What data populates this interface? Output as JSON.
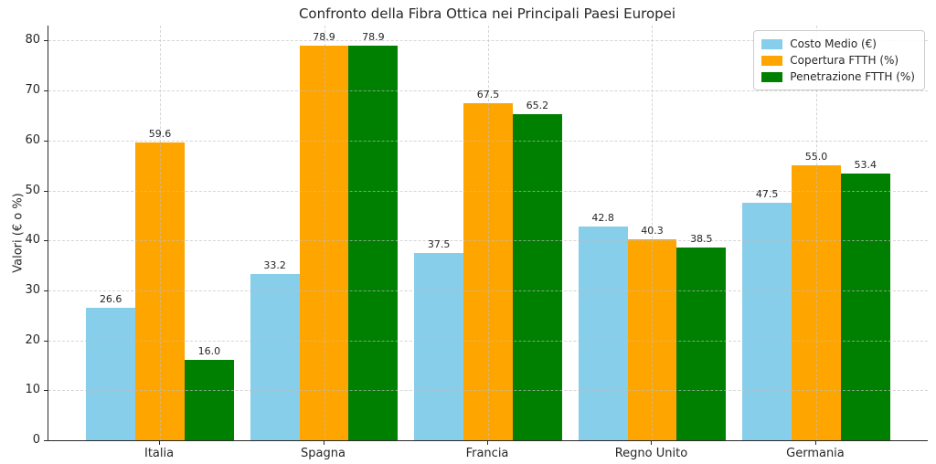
{
  "title": "Confronto della Fibra Ottica nei Principali Paesi Europei",
  "chart_data": {
    "type": "bar",
    "title": "Confronto della Fibra Ottica nei Principali Paesi Europei",
    "categories": [
      "Italia",
      "Spagna",
      "Francia",
      "Regno Unito",
      "Germania"
    ],
    "series": [
      {
        "name": "Costo Medio (€)",
        "color": "#87CEEB",
        "values": [
          26.6,
          33.2,
          37.5,
          42.8,
          47.5
        ]
      },
      {
        "name": "Copertura FTTH (%)",
        "color": "#FFA500",
        "values": [
          59.6,
          78.9,
          67.5,
          40.3,
          55.0
        ]
      },
      {
        "name": "Penetrazione FTTH (%)",
        "color": "#008000",
        "values": [
          16.0,
          78.9,
          65.2,
          38.5,
          53.4
        ]
      }
    ],
    "xlabel": "",
    "ylabel": "Valori (€ o %)",
    "ylim": [
      0,
      83
    ],
    "yticks": [
      0,
      10,
      20,
      30,
      40,
      50,
      60,
      70,
      80
    ],
    "grid": true,
    "grid_style": "dashed",
    "legend_position": "upper right",
    "bar_value_labels": true
  }
}
